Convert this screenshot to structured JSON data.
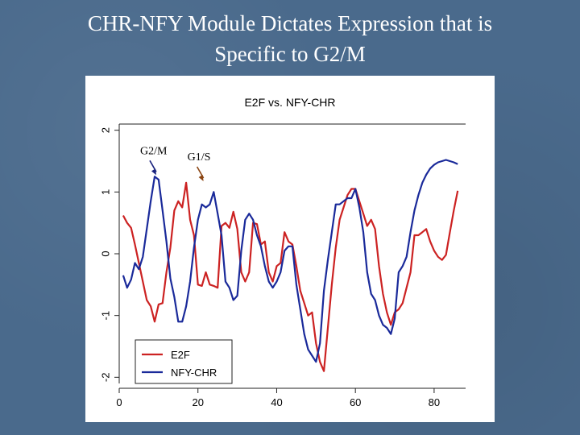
{
  "slide": {
    "title_line1": "CHR-NFY Module Dictates Expression that is",
    "title_line2": "Specific to G2/M"
  },
  "chart_data": {
    "type": "line",
    "title": "E2F vs. NFY-CHR",
    "xlabel": "",
    "ylabel": "",
    "xlim": [
      0,
      88
    ],
    "ylim": [
      -2.1,
      2.1
    ],
    "x_ticks": [
      0,
      20,
      40,
      60,
      80
    ],
    "y_ticks": [
      -2,
      -1,
      0,
      1,
      2
    ],
    "x_tick_labels": [
      "0",
      "20",
      "40",
      "60",
      "80"
    ],
    "y_tick_labels": [
      "-2",
      "-1",
      "0",
      "1",
      "2"
    ],
    "legend_position": "bottom-left",
    "annotations": [
      {
        "text": "G2/M",
        "x": 9,
        "y": 1.3,
        "color": "#1a237e"
      },
      {
        "text": "G1/S",
        "x": 21,
        "y": 1.2,
        "color": "#8b4513"
      }
    ],
    "series": [
      {
        "name": "E2F",
        "color": "#cc2222",
        "x": [
          1,
          2,
          3,
          4,
          5,
          6,
          7,
          8,
          9,
          10,
          11,
          12,
          13,
          14,
          15,
          16,
          17,
          18,
          19,
          20,
          21,
          22,
          23,
          24,
          25,
          26,
          27,
          28,
          29,
          30,
          31,
          32,
          33,
          34,
          35,
          36,
          37,
          38,
          39,
          40,
          41,
          42,
          43,
          44,
          45,
          46,
          47,
          48,
          49,
          50,
          51,
          52,
          53,
          54,
          55,
          56,
          57,
          58,
          59,
          60,
          61,
          62,
          63,
          64,
          65,
          66,
          67,
          68,
          69,
          70,
          71,
          72,
          73,
          74,
          75,
          76,
          77,
          78,
          79,
          80,
          81,
          82,
          83,
          84,
          85,
          86
        ],
        "values": [
          0.62,
          0.5,
          0.42,
          0.15,
          -0.15,
          -0.45,
          -0.75,
          -0.85,
          -1.1,
          -0.82,
          -0.8,
          -0.3,
          0.1,
          0.7,
          0.85,
          0.75,
          1.15,
          0.55,
          0.3,
          -0.5,
          -0.52,
          -0.3,
          -0.5,
          -0.52,
          -0.55,
          0.45,
          0.5,
          0.42,
          0.68,
          0.4,
          -0.3,
          -0.45,
          -0.3,
          0.5,
          0.48,
          0.15,
          0.2,
          -0.3,
          -0.45,
          -0.2,
          -0.15,
          0.35,
          0.2,
          0.15,
          -0.2,
          -0.6,
          -0.8,
          -1.0,
          -0.95,
          -1.45,
          -1.75,
          -1.9,
          -1.2,
          -0.5,
          0.1,
          0.55,
          0.75,
          0.95,
          1.05,
          1.05,
          0.85,
          0.65,
          0.45,
          0.55,
          0.4,
          -0.2,
          -0.65,
          -0.95,
          -1.15,
          -0.95,
          -0.9,
          -0.8,
          -0.55,
          -0.3,
          0.3,
          0.3,
          0.35,
          0.4,
          0.2,
          0.05,
          -0.05,
          -0.1,
          -0.02,
          0.35,
          0.7,
          1.02
        ]
      },
      {
        "name": "NFY-CHR",
        "color": "#1a2a9a",
        "x": [
          1,
          2,
          3,
          4,
          5,
          6,
          7,
          8,
          9,
          10,
          11,
          12,
          13,
          14,
          15,
          16,
          17,
          18,
          19,
          20,
          21,
          22,
          23,
          24,
          25,
          26,
          27,
          28,
          29,
          30,
          31,
          32,
          33,
          34,
          35,
          36,
          37,
          38,
          39,
          40,
          41,
          42,
          43,
          44,
          45,
          46,
          47,
          48,
          49,
          50,
          51,
          52,
          53,
          54,
          55,
          56,
          57,
          58,
          59,
          60,
          61,
          62,
          63,
          64,
          65,
          66,
          67,
          68,
          69,
          70,
          71,
          72,
          73,
          74,
          75,
          76,
          77,
          78,
          79,
          80,
          81,
          82,
          83,
          84,
          85,
          86
        ],
        "values": [
          -0.35,
          -0.55,
          -0.42,
          -0.15,
          -0.25,
          -0.05,
          0.4,
          0.85,
          1.25,
          1.2,
          0.7,
          0.2,
          -0.4,
          -0.7,
          -1.1,
          -1.1,
          -0.85,
          -0.45,
          0.1,
          0.55,
          0.8,
          0.75,
          0.8,
          1.0,
          0.65,
          0.3,
          -0.45,
          -0.55,
          -0.75,
          -0.68,
          0.05,
          0.55,
          0.65,
          0.55,
          0.3,
          0.12,
          -0.2,
          -0.45,
          -0.55,
          -0.45,
          -0.3,
          0.05,
          0.12,
          0.12,
          -0.5,
          -0.9,
          -1.3,
          -1.55,
          -1.65,
          -1.75,
          -1.45,
          -0.6,
          -0.1,
          0.35,
          0.8,
          0.8,
          0.85,
          0.9,
          0.9,
          1.05,
          0.75,
          0.35,
          -0.3,
          -0.65,
          -0.75,
          -1.0,
          -1.15,
          -1.2,
          -1.3,
          -1.05,
          -0.3,
          -0.2,
          -0.05,
          0.35,
          0.7,
          0.95,
          1.15,
          1.28,
          1.38,
          1.44,
          1.48,
          1.5,
          1.52,
          1.5,
          1.48,
          1.45
        ]
      }
    ]
  }
}
